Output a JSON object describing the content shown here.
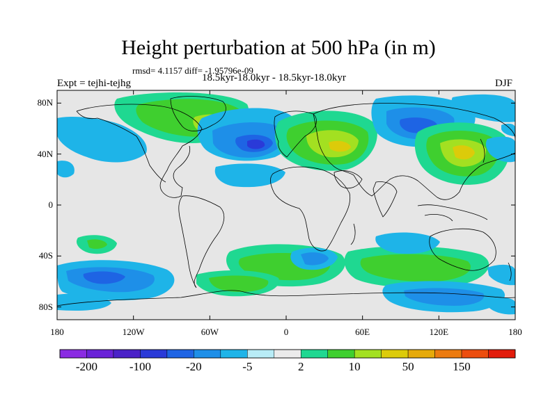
{
  "title": "Height perturbation at 500 hPa (in m)",
  "stats_line": "rmsd= 4.1157 diff= -1.95796e-09",
  "expt_label": "Expt = tejhi-tejhg",
  "period_label": "18.5kyr-18.0kyr - 18.5kyr-18.0kyr",
  "season_label": "DJF",
  "map": {
    "lat_labels": [
      "80N",
      "40N",
      "0",
      "40S",
      "80S"
    ],
    "lat_values": [
      80,
      40,
      0,
      -40,
      -80
    ],
    "lon_labels": [
      "180",
      "120W",
      "60W",
      "0",
      "60E",
      "120E",
      "180"
    ],
    "lon_values": [
      -180,
      -120,
      -60,
      0,
      60,
      120,
      180
    ],
    "lon_range": [
      -180,
      180
    ],
    "lat_range": [
      -90,
      90
    ],
    "background_color": "#e6e6e6"
  },
  "colorbar": {
    "labels": [
      "-200",
      "-100",
      "-20",
      "-5",
      "2",
      "10",
      "50",
      "150"
    ],
    "colors": [
      "#8a2be2",
      "#6a22d8",
      "#4b22c8",
      "#2a3ad8",
      "#1e64e4",
      "#1e8fe8",
      "#1eb4e8",
      "#b8ecf6",
      "#ebebeb",
      "#1fd891",
      "#3fcf2f",
      "#a3e021",
      "#dccb0a",
      "#e6aa0a",
      "#ec7b10",
      "#ec4d0e",
      "#e21c0c"
    ]
  },
  "field_levels": {
    "lm": "#1eb4e8",
    "lm2": "#1e8fe8",
    "lm3": "#1e64e4",
    "lm4": "#2a3ad8",
    "lp": "#1fd891",
    "lp2": "#3fcf2f",
    "lp3": "#a3e021",
    "lp4": "#dccb0a"
  }
}
